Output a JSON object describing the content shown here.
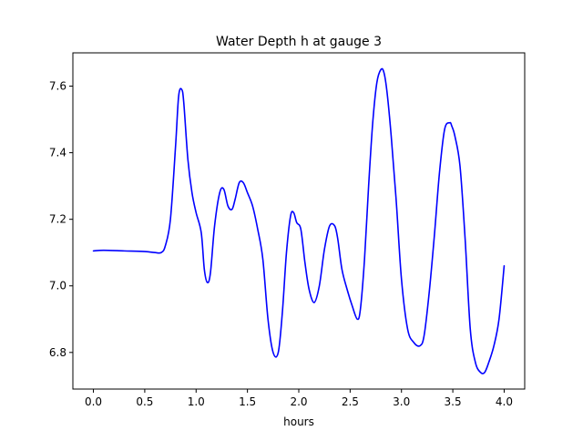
{
  "chart_data": {
    "type": "line",
    "title": "Water Depth h at gauge 3",
    "xlabel": "hours",
    "ylabel": "",
    "xlim": [
      -0.2,
      4.2
    ],
    "ylim": [
      6.69,
      7.7
    ],
    "xticks": [
      0.0,
      0.5,
      1.0,
      1.5,
      2.0,
      2.5,
      3.0,
      3.5,
      4.0
    ],
    "xtick_labels": [
      "0.0",
      "0.5",
      "1.0",
      "1.5",
      "2.0",
      "2.5",
      "3.0",
      "3.5",
      "4.0"
    ],
    "yticks": [
      6.8,
      7.0,
      7.2,
      7.4,
      7.6
    ],
    "ytick_labels": [
      "6.8",
      "7.0",
      "7.2",
      "7.4",
      "7.6"
    ],
    "grid": false,
    "series": [
      {
        "color": "#0000ff",
        "x": [
          0.0,
          0.1,
          0.3,
          0.5,
          0.6,
          0.66,
          0.7,
          0.75,
          0.8,
          0.83,
          0.86,
          0.88,
          0.92,
          0.96,
          1.0,
          1.05,
          1.08,
          1.11,
          1.14,
          1.18,
          1.23,
          1.27,
          1.31,
          1.35,
          1.38,
          1.42,
          1.46,
          1.5,
          1.55,
          1.6,
          1.65,
          1.7,
          1.75,
          1.8,
          1.84,
          1.88,
          1.92,
          1.95,
          1.98,
          2.02,
          2.06,
          2.1,
          2.15,
          2.2,
          2.25,
          2.3,
          2.35,
          2.38,
          2.42,
          2.47,
          2.52,
          2.57,
          2.6,
          2.64,
          2.68,
          2.72,
          2.76,
          2.8,
          2.83,
          2.86,
          2.9,
          2.95,
          3.0,
          3.06,
          3.12,
          3.18,
          3.22,
          3.27,
          3.32,
          3.37,
          3.42,
          3.47,
          3.49,
          3.52,
          3.57,
          3.62,
          3.67,
          3.72,
          3.77,
          3.81,
          3.85,
          3.9,
          3.95,
          4.0
        ],
        "y": [
          7.105,
          7.107,
          7.105,
          7.103,
          7.1,
          7.1,
          7.12,
          7.2,
          7.42,
          7.57,
          7.59,
          7.55,
          7.38,
          7.28,
          7.22,
          7.16,
          7.05,
          7.01,
          7.04,
          7.18,
          7.28,
          7.29,
          7.24,
          7.23,
          7.26,
          7.31,
          7.31,
          7.28,
          7.24,
          7.17,
          7.08,
          6.9,
          6.8,
          6.8,
          6.92,
          7.1,
          7.21,
          7.22,
          7.19,
          7.17,
          7.07,
          6.99,
          6.95,
          7.0,
          7.11,
          7.18,
          7.18,
          7.14,
          7.05,
          6.99,
          6.94,
          6.9,
          6.93,
          7.08,
          7.3,
          7.49,
          7.61,
          7.65,
          7.64,
          7.58,
          7.45,
          7.25,
          7.02,
          6.87,
          6.83,
          6.82,
          6.85,
          6.98,
          7.15,
          7.34,
          7.47,
          7.49,
          7.48,
          7.45,
          7.36,
          7.14,
          6.87,
          6.77,
          6.74,
          6.74,
          6.77,
          6.82,
          6.9,
          7.06
        ]
      }
    ]
  }
}
